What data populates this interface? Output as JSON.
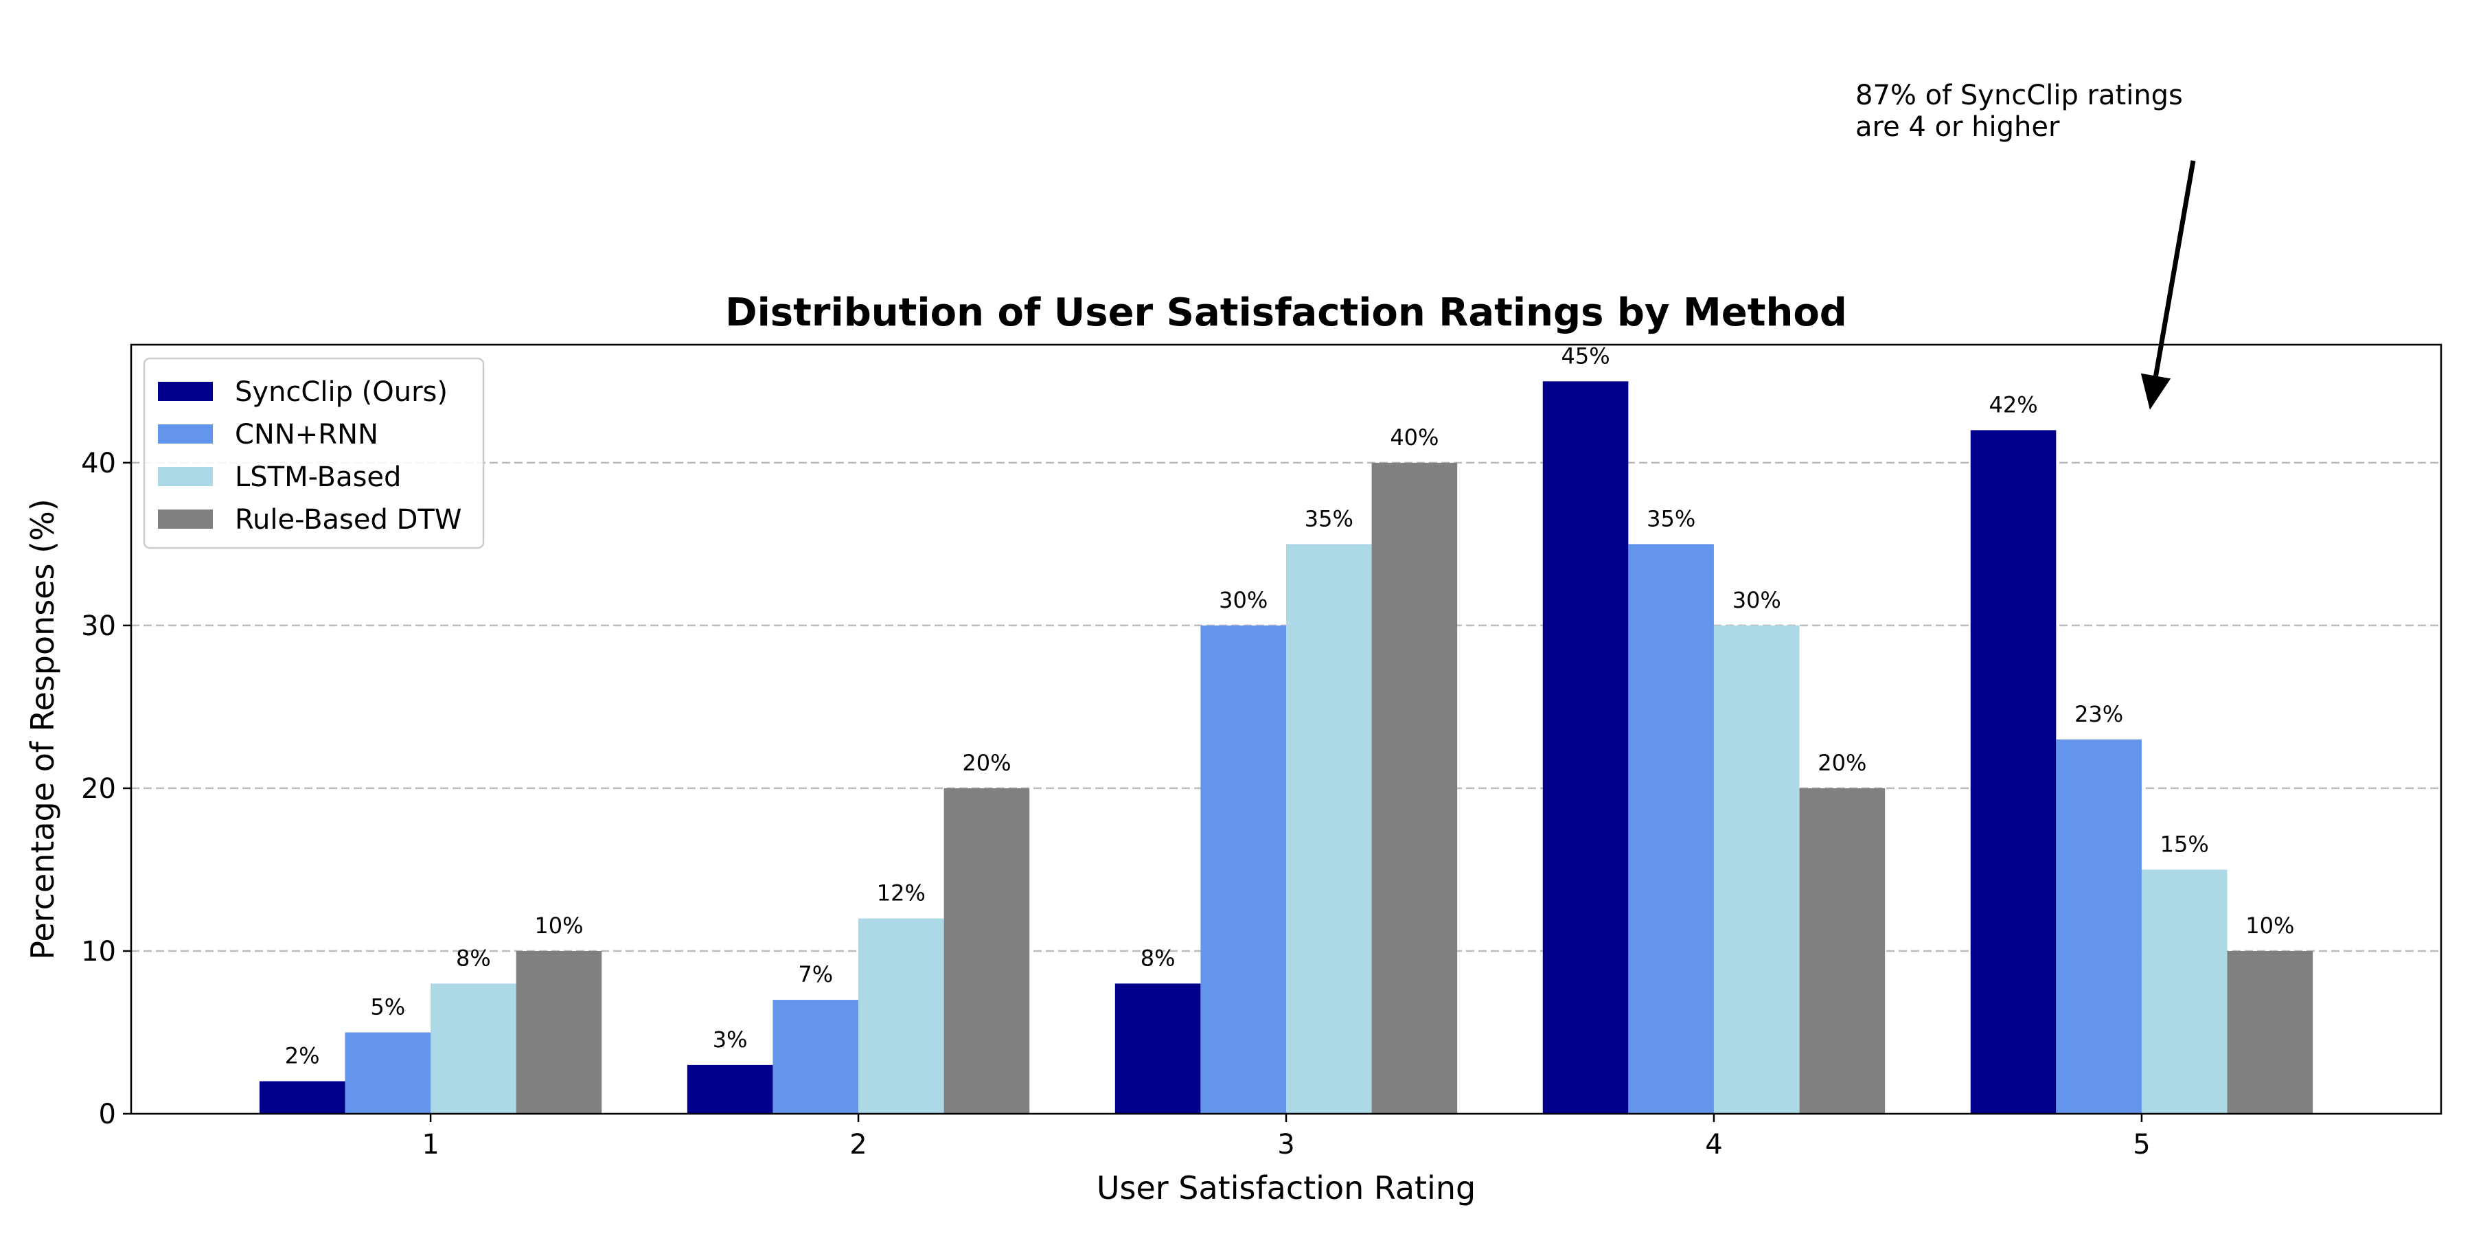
{
  "chart_data": {
    "type": "bar",
    "title": "Distribution of User Satisfaction Ratings by Method",
    "xlabel": "User Satisfaction Rating",
    "ylabel": "Percentage of Responses (%)",
    "categories": [
      "1",
      "2",
      "3",
      "4",
      "5"
    ],
    "ylim": [
      0,
      47.25
    ],
    "yticks": [
      0,
      10,
      20,
      30,
      40
    ],
    "grid": "y-dashed",
    "legend_position": "top-left",
    "series": [
      {
        "name": "SyncClip (Ours)",
        "color": "#00008B",
        "values": [
          2,
          3,
          8,
          45,
          42
        ]
      },
      {
        "name": "CNN+RNN",
        "color": "#6495ED",
        "values": [
          5,
          7,
          30,
          35,
          23
        ]
      },
      {
        "name": "LSTM-Based",
        "color": "#ADD8E6",
        "values": [
          8,
          12,
          35,
          30,
          15
        ]
      },
      {
        "name": "Rule-Based DTW",
        "color": "#808080",
        "values": [
          10,
          20,
          40,
          20,
          10
        ]
      }
    ],
    "annotation": {
      "lines": [
        "87% of SyncClip ratings",
        "are 4 or higher"
      ],
      "target_category": "5",
      "target_value": 43
    }
  }
}
